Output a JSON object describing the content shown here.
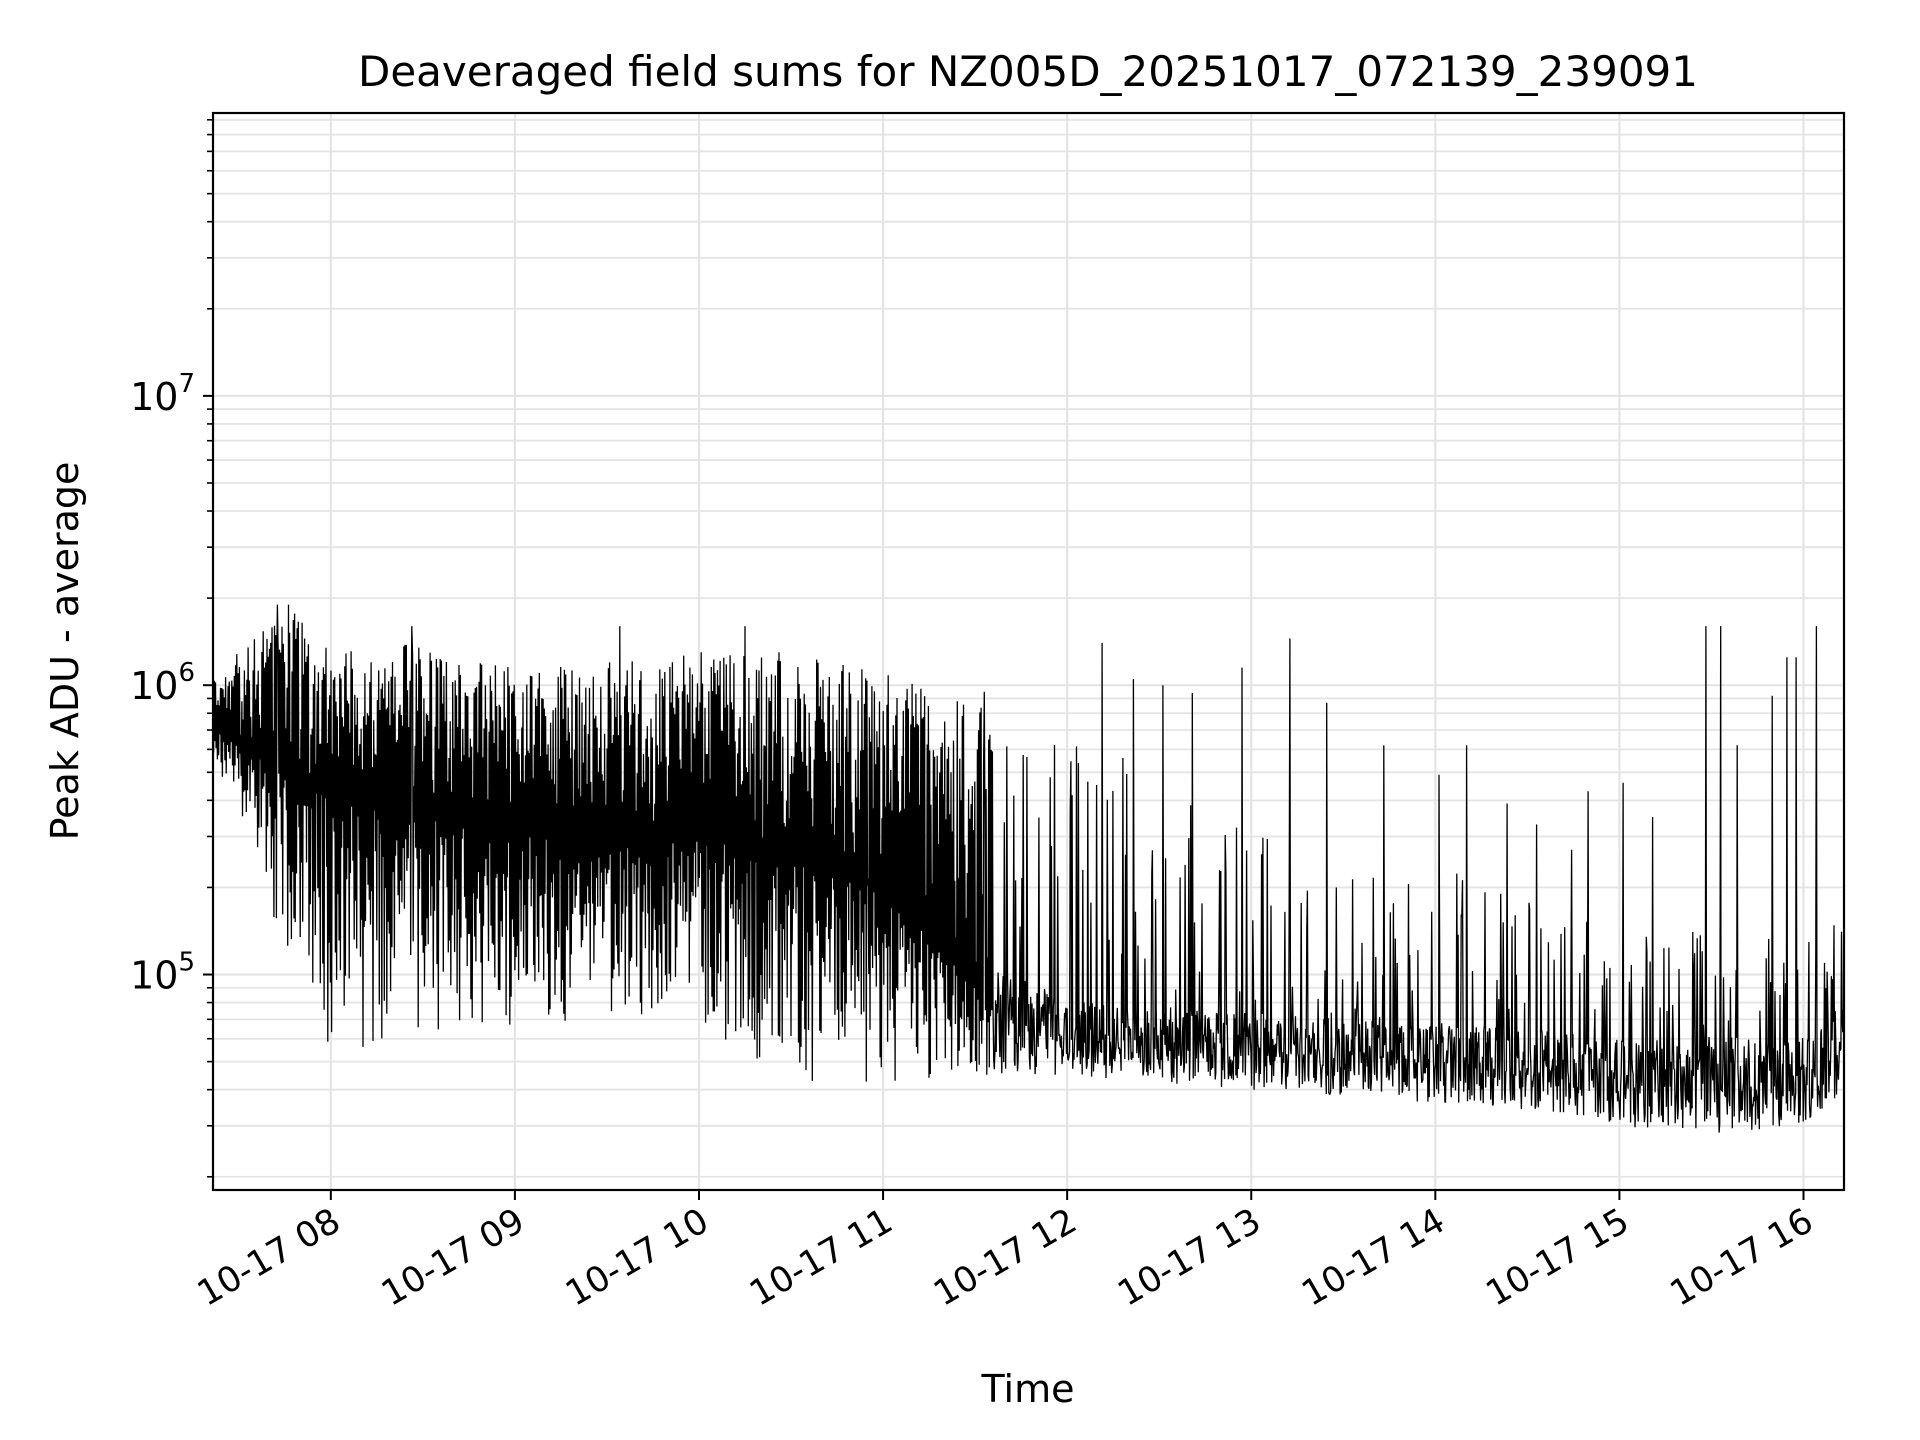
{
  "chart_data": {
    "type": "line",
    "title": "Deaveraged field sums for NZ005D_20251017_072139_239091",
    "xlabel": "Time",
    "ylabel": "Peak ADU - average",
    "yscale": "log",
    "x_unit": "hours since 10-17 00:00",
    "xlim": [
      7.36,
      16.22
    ],
    "ylim": [
      18000,
      95000000
    ],
    "grid": true,
    "line_color": "#000000",
    "x_ticks": [
      {
        "value": 8,
        "label": "10-17 08"
      },
      {
        "value": 9,
        "label": "10-17 09"
      },
      {
        "value": 10,
        "label": "10-17 10"
      },
      {
        "value": 11,
        "label": "10-17 11"
      },
      {
        "value": 12,
        "label": "10-17 12"
      },
      {
        "value": 13,
        "label": "10-17 13"
      },
      {
        "value": 14,
        "label": "10-17 14"
      },
      {
        "value": 15,
        "label": "10-17 15"
      },
      {
        "value": 16,
        "label": "10-17 16"
      }
    ],
    "y_ticks": [
      {
        "value": 100000,
        "base": "10",
        "exp": "5"
      },
      {
        "value": 1000000,
        "base": "10",
        "exp": "6"
      },
      {
        "value": 10000000,
        "base": "10",
        "exp": "7"
      }
    ],
    "series": [
      {
        "name": "Peak ADU - average",
        "envelope": [
          {
            "t": 7.36,
            "high": 1100000,
            "low": 550000
          },
          {
            "t": 7.6,
            "high": 1500000,
            "low": 250000
          },
          {
            "t": 7.8,
            "high": 1800000,
            "low": 80000
          },
          {
            "t": 8.0,
            "high": 1300000,
            "low": 55000
          },
          {
            "t": 8.5,
            "high": 1400000,
            "low": 52000
          },
          {
            "t": 9.0,
            "high": 1150000,
            "low": 65000
          },
          {
            "t": 9.5,
            "high": 1200000,
            "low": 70000
          },
          {
            "t": 10.0,
            "high": 1300000,
            "low": 55000
          },
          {
            "t": 10.5,
            "high": 1300000,
            "low": 40000
          },
          {
            "t": 11.0,
            "high": 1100000,
            "low": 40000
          },
          {
            "t": 11.5,
            "high": 850000,
            "low": 45000
          },
          {
            "t": 12.0,
            "high": 700000,
            "low": 45000
          },
          {
            "t": 12.5,
            "high": 500000,
            "low": 42000
          },
          {
            "t": 13.0,
            "high": 350000,
            "low": 40000
          },
          {
            "t": 13.5,
            "high": 300000,
            "low": 38000
          },
          {
            "t": 14.0,
            "high": 250000,
            "low": 36000
          },
          {
            "t": 14.5,
            "high": 180000,
            "low": 34000
          },
          {
            "t": 15.0,
            "high": 150000,
            "low": 30000
          },
          {
            "t": 15.5,
            "high": 140000,
            "low": 28000
          },
          {
            "t": 16.0,
            "high": 130000,
            "low": 30000
          },
          {
            "t": 16.22,
            "high": 180000,
            "low": 38000
          }
        ],
        "baseline": [
          {
            "t": 7.36,
            "value": 700000
          },
          {
            "t": 8.0,
            "value": 400000
          },
          {
            "t": 9.0,
            "value": 300000
          },
          {
            "t": 10.0,
            "value": 300000
          },
          {
            "t": 11.0,
            "value": 200000
          },
          {
            "t": 11.5,
            "value": 90000
          },
          {
            "t": 12.0,
            "value": 60000
          },
          {
            "t": 13.0,
            "value": 55000
          },
          {
            "t": 14.0,
            "value": 52000
          },
          {
            "t": 15.0,
            "value": 45000
          },
          {
            "t": 16.0,
            "value": 45000
          },
          {
            "t": 16.22,
            "value": 60000
          }
        ],
        "spikes": [
          {
            "t": 7.71,
            "value": 1900000
          },
          {
            "t": 7.77,
            "value": 1900000
          },
          {
            "t": 8.44,
            "value": 1600000
          },
          {
            "t": 9.57,
            "value": 1600000
          },
          {
            "t": 10.25,
            "value": 1600000
          },
          {
            "t": 11.55,
            "value": 950000
          },
          {
            "t": 12.19,
            "value": 1400000
          },
          {
            "t": 12.36,
            "value": 1050000
          },
          {
            "t": 12.52,
            "value": 1000000
          },
          {
            "t": 12.68,
            "value": 940000
          },
          {
            "t": 12.95,
            "value": 1150000
          },
          {
            "t": 13.21,
            "value": 1450000
          },
          {
            "t": 13.41,
            "value": 870000
          },
          {
            "t": 13.72,
            "value": 620000
          },
          {
            "t": 14.02,
            "value": 490000
          },
          {
            "t": 14.17,
            "value": 620000
          },
          {
            "t": 14.39,
            "value": 390000
          },
          {
            "t": 14.55,
            "value": 330000
          },
          {
            "t": 14.74,
            "value": 270000
          },
          {
            "t": 14.83,
            "value": 430000
          },
          {
            "t": 15.02,
            "value": 460000
          },
          {
            "t": 15.18,
            "value": 350000
          },
          {
            "t": 15.47,
            "value": 1600000
          },
          {
            "t": 15.55,
            "value": 1600000
          },
          {
            "t": 15.64,
            "value": 620000
          },
          {
            "t": 15.83,
            "value": 920000
          },
          {
            "t": 15.91,
            "value": 1250000
          },
          {
            "t": 15.96,
            "value": 1250000
          },
          {
            "t": 16.07,
            "value": 1600000
          }
        ]
      }
    ]
  }
}
